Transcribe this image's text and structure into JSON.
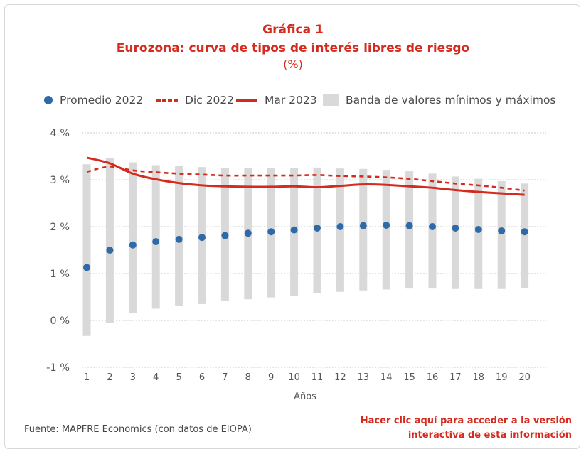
{
  "title": {
    "line1": "Gráfica 1",
    "line2": "Eurozona: curva de tipos de interés libres de riesgo",
    "line3": "(%)"
  },
  "legend": {
    "promedio": "Promedio 2022",
    "dic": "Dic 2022",
    "mar": "Mar 2023",
    "banda": "Banda de valores mínimos y máximos"
  },
  "source": "Fuente: MAPFRE Economics (con datos de EIOPA)",
  "link": {
    "line1": "Hacer clic aquí para acceder a la versión",
    "line2": "interactiva de esta información"
  },
  "colors": {
    "accent": "#d52b1e",
    "dot": "#2e6aa8",
    "band": "#d9d9d9"
  },
  "chart_data": {
    "type": "line",
    "xlabel": "Años",
    "ylabel": "",
    "x": [
      1,
      2,
      3,
      4,
      5,
      6,
      7,
      8,
      9,
      10,
      11,
      12,
      13,
      14,
      15,
      16,
      17,
      18,
      19,
      20
    ],
    "ylim": [
      -1,
      4
    ],
    "yticks": [
      -1,
      0,
      1,
      2,
      3,
      4
    ],
    "ytick_labels": [
      "-1 %",
      "0 %",
      "1 %",
      "2 %",
      "3 %",
      "4 %"
    ],
    "grid": "horizontal",
    "legend_position": "top",
    "series": [
      {
        "name": "Promedio 2022",
        "style": "dots",
        "values": [
          1.13,
          1.5,
          1.61,
          1.68,
          1.73,
          1.77,
          1.81,
          1.86,
          1.89,
          1.93,
          1.97,
          2.0,
          2.02,
          2.03,
          2.02,
          2.0,
          1.97,
          1.94,
          1.91,
          1.89
        ]
      },
      {
        "name": "Dic 2022",
        "style": "dashed",
        "values": [
          3.17,
          3.28,
          3.2,
          3.16,
          3.13,
          3.11,
          3.09,
          3.09,
          3.09,
          3.09,
          3.1,
          3.08,
          3.07,
          3.05,
          3.02,
          2.97,
          2.92,
          2.88,
          2.83,
          2.77
        ]
      },
      {
        "name": "Mar 2023",
        "style": "solid",
        "values": [
          3.47,
          3.35,
          3.13,
          3.01,
          2.93,
          2.88,
          2.86,
          2.85,
          2.85,
          2.86,
          2.84,
          2.87,
          2.9,
          2.89,
          2.86,
          2.83,
          2.78,
          2.74,
          2.71,
          2.68
        ]
      },
      {
        "name": "Banda de valores mínimos y máximos",
        "style": "band",
        "min": [
          -0.33,
          -0.05,
          0.15,
          0.25,
          0.31,
          0.35,
          0.41,
          0.45,
          0.49,
          0.53,
          0.58,
          0.61,
          0.64,
          0.66,
          0.68,
          0.68,
          0.67,
          0.67,
          0.67,
          0.69
        ],
        "max": [
          3.33,
          3.46,
          3.37,
          3.31,
          3.29,
          3.27,
          3.25,
          3.25,
          3.25,
          3.25,
          3.26,
          3.24,
          3.23,
          3.21,
          3.18,
          3.13,
          3.07,
          3.02,
          2.97,
          2.92
        ]
      }
    ]
  }
}
